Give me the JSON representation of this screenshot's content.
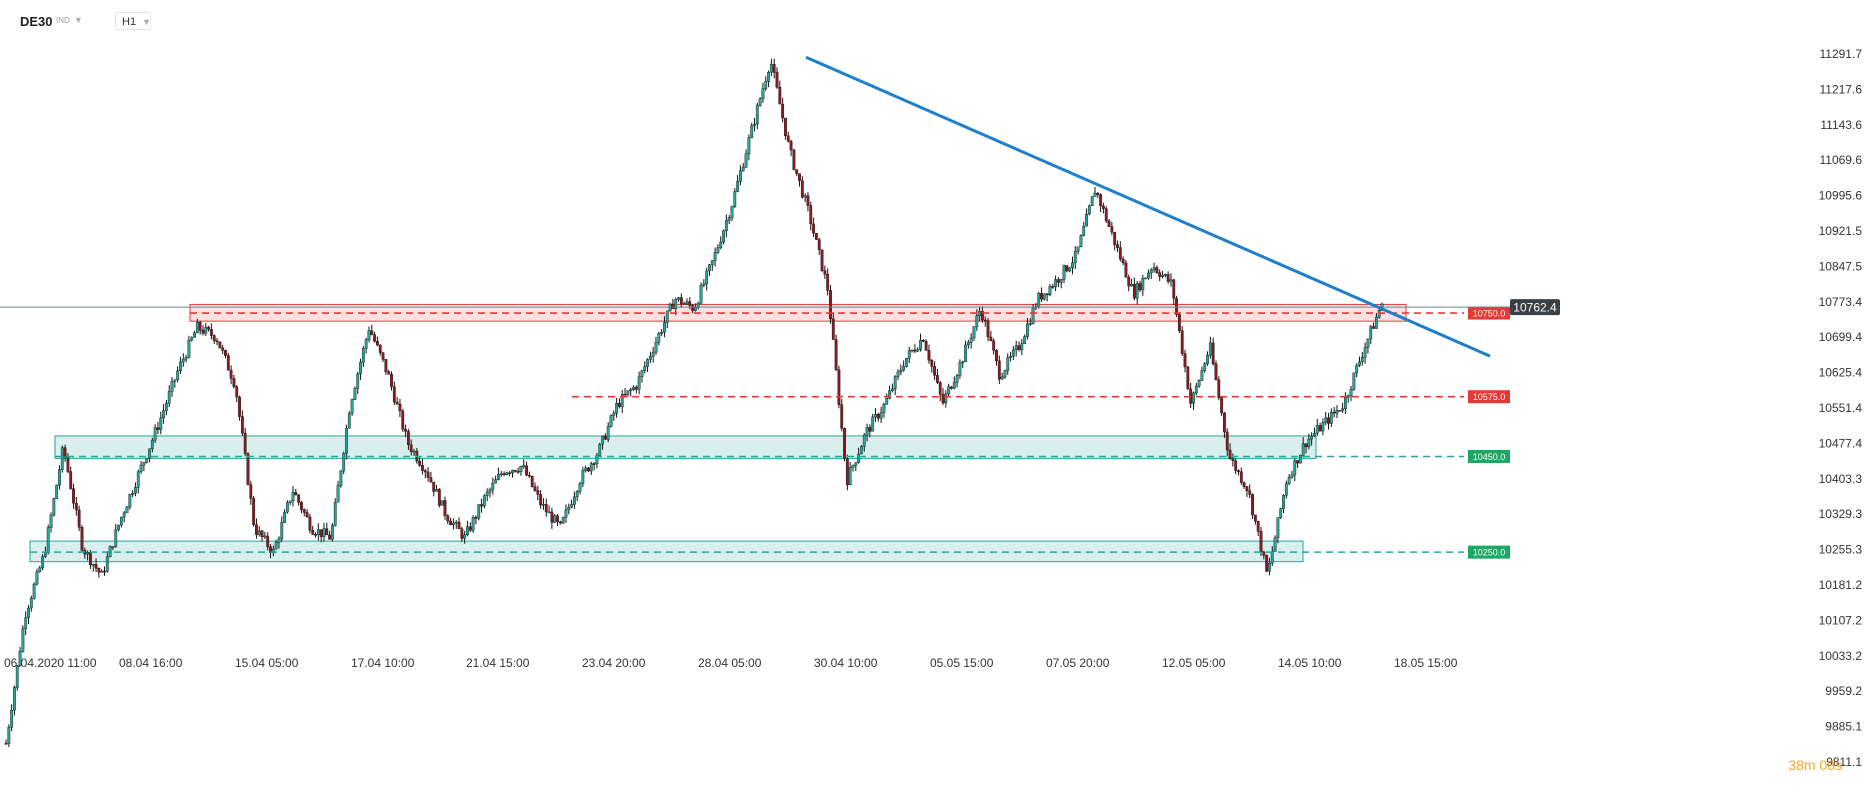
{
  "toolbar": {
    "symbol": "DE30",
    "type": "IND",
    "timeframe": "H1"
  },
  "countdown": {
    "minutes": "38",
    "m_unit": "m",
    "seconds": "08",
    "s_unit": "s"
  },
  "colors": {
    "resistance": "#e53935",
    "support": "#26a69a",
    "trendline": "#1e7fcb",
    "candle_up": "#26a69a",
    "candle_down": "#8b1a1a",
    "current_badge": "#3a3f44"
  },
  "chart_data": {
    "type": "candlestick",
    "symbol": "DE30",
    "timeframe": "H1",
    "x_ticks": [
      "06.04.2020 11:00",
      "08.04 16:00",
      "15.04 05:00",
      "17.04 10:00",
      "21.04 15:00",
      "23.04 20:00",
      "28.04 05:00",
      "30.04 10:00",
      "05.05 15:00",
      "07.05 20:00",
      "12.05 05:00",
      "14.05 10:00",
      "18.05 15:00"
    ],
    "y_ticks": [
      "11291.7",
      "11217.6",
      "11143.6",
      "11069.6",
      "10995.6",
      "10921.5",
      "10847.5",
      "10773.4",
      "10699.4",
      "10625.4",
      "10551.4",
      "10477.4",
      "10403.3",
      "10329.3",
      "10255.3",
      "10181.2",
      "10107.2",
      "10033.2",
      "9959.2",
      "9885.1",
      "9811.1"
    ],
    "ylim": [
      9811.1,
      11291.7
    ],
    "current_price": "10762.4",
    "levels": [
      {
        "label": "10750.0",
        "value": 10750.0,
        "kind": "resistance",
        "zone": [
          10733,
          10768
        ]
      },
      {
        "label": "10575.0",
        "value": 10575.0,
        "kind": "resistance",
        "zone": null
      },
      {
        "label": "10450.0",
        "value": 10450.0,
        "kind": "support",
        "zone": [
          10446,
          10493
        ]
      },
      {
        "label": "10250.0",
        "value": 10250.0,
        "kind": "support",
        "zone": [
          10230,
          10273
        ]
      }
    ],
    "trendline": {
      "start": 11285,
      "end": 10660
    },
    "price_path": [
      9850,
      10120,
      10245,
      10470,
      10260,
      10200,
      10320,
      10420,
      10520,
      10630,
      10720,
      10700,
      10600,
      10300,
      10250,
      10380,
      10300,
      10280,
      10560,
      10720,
      10620,
      10480,
      10420,
      10330,
      10280,
      10360,
      10420,
      10430,
      10350,
      10300,
      10400,
      10460,
      10560,
      10600,
      10690,
      10780,
      10760,
      10860,
      10980,
      11130,
      11280,
      11090,
      10960,
      10800,
      10400,
      10500,
      10560,
      10650,
      10700,
      10560,
      10650,
      10760,
      10620,
      10680,
      10780,
      10820,
      10870,
      11010,
      10900,
      10790,
      10850,
      10810,
      10560,
      10680,
      10450,
      10380,
      10200,
      10400,
      10480,
      10520,
      10560,
      10670,
      10770
    ]
  }
}
